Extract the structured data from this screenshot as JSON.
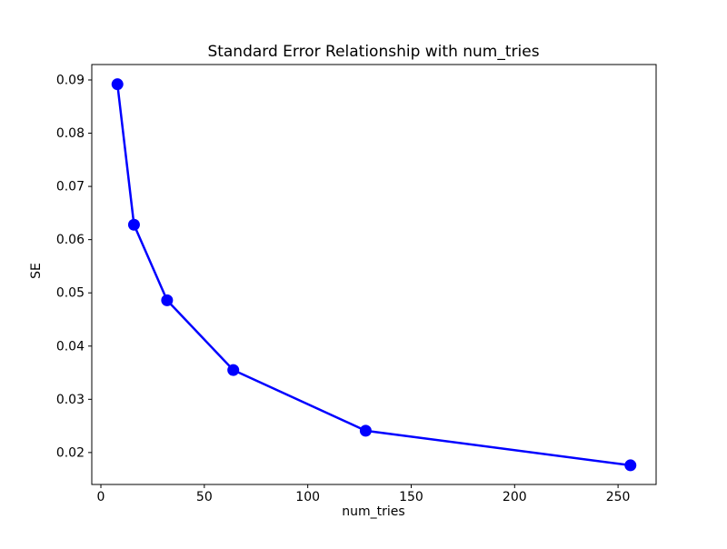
{
  "figure": {
    "background": "#ffffff"
  },
  "chart_data": {
    "type": "line",
    "title": "Standard Error Relationship with num_tries",
    "xlabel": "num_tries",
    "ylabel": "SE",
    "grid": false,
    "legend": null,
    "xlim": [
      -4.4,
      268.4
    ],
    "ylim": [
      0.014,
      0.0929
    ],
    "x_ticks": [
      0,
      50,
      100,
      150,
      200,
      250
    ],
    "x_tick_labels": [
      "0",
      "50",
      "100",
      "150",
      "200",
      "250"
    ],
    "y_ticks": [
      0.02,
      0.03,
      0.04,
      0.05,
      0.06,
      0.07,
      0.08,
      0.09
    ],
    "y_tick_labels": [
      "0.02",
      "0.03",
      "0.04",
      "0.05",
      "0.06",
      "0.07",
      "0.08",
      "0.09"
    ],
    "series": [
      {
        "name": "SE",
        "color": "#0000ff",
        "marker": "circle",
        "line_width": 2.5,
        "marker_radius": 6.5,
        "x": [
          8,
          16,
          32,
          64,
          128,
          256
        ],
        "y": [
          0.0892,
          0.0628,
          0.0486,
          0.0355,
          0.0241,
          0.0176
        ]
      }
    ]
  }
}
